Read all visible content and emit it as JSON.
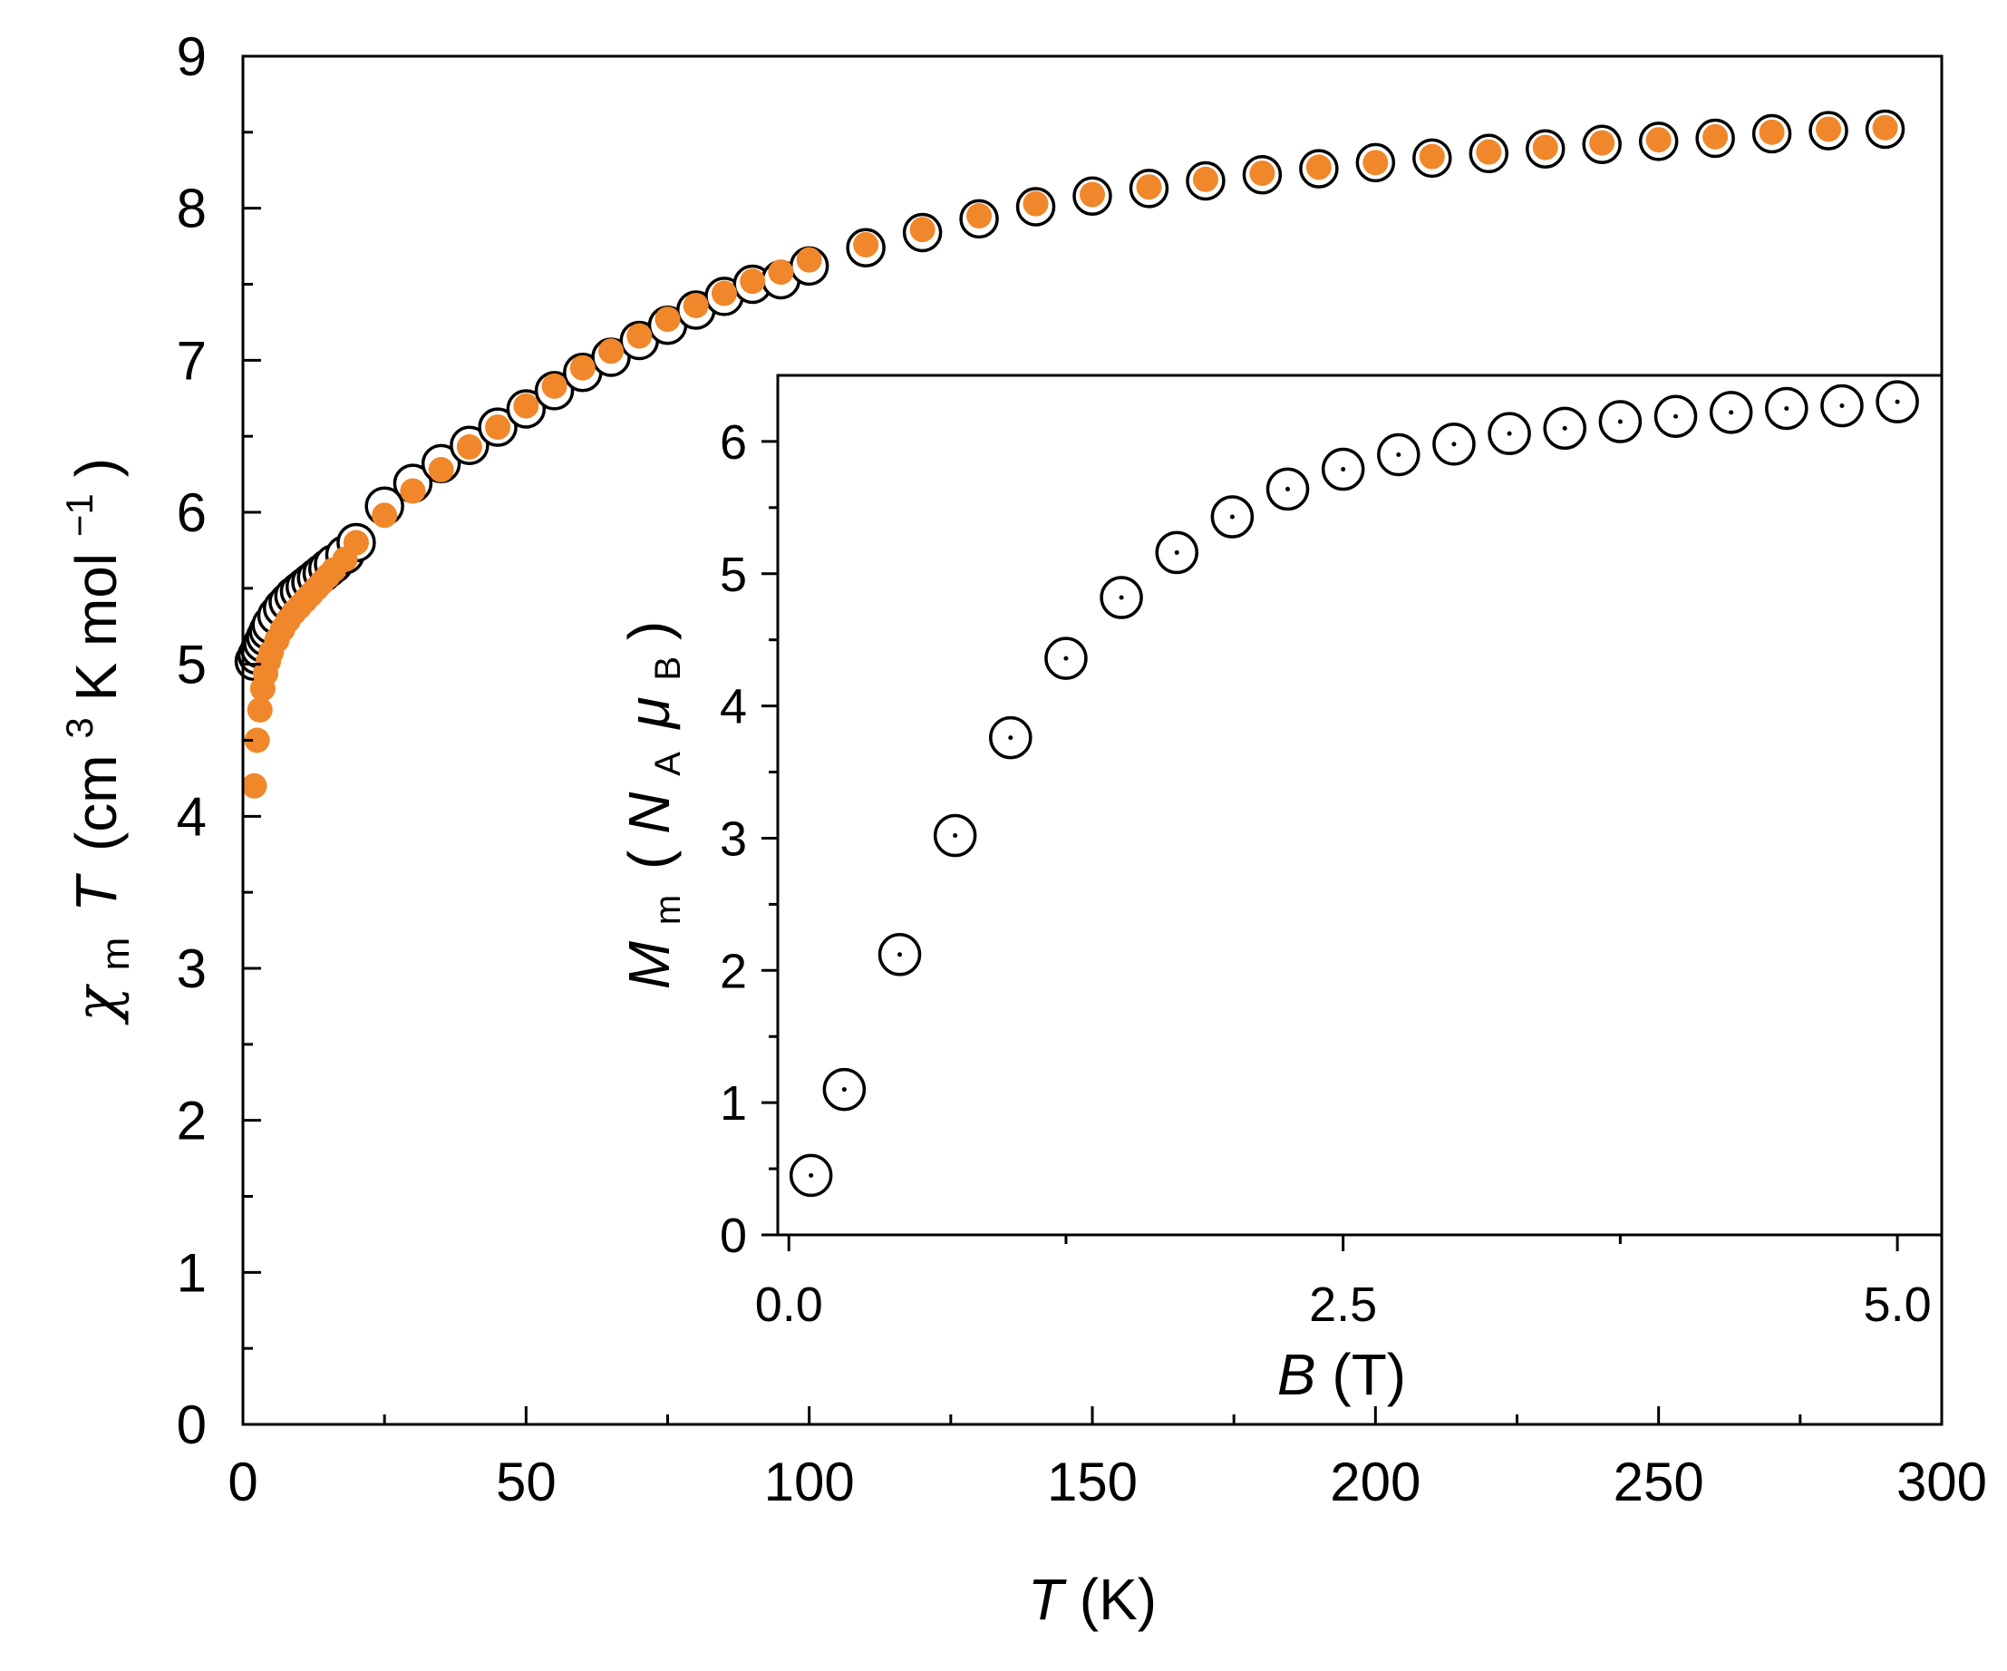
{
  "chart_data": [
    {
      "id": "main",
      "type": "scatter",
      "xlabel": {
        "symbol": "T",
        "unit": "(K)"
      },
      "ylabel": {
        "symbol": "χ",
        "subscript": "m",
        "symbol2": "T",
        "unit_open": "(cm",
        "unit_sup": "3",
        "unit_mid": " K mol",
        "unit_sup2": "−1",
        "unit_close": ")"
      },
      "xlim": [
        0,
        300
      ],
      "ylim": [
        0,
        9
      ],
      "xticks": [
        "0",
        "50",
        "100",
        "150",
        "200",
        "250",
        "300"
      ],
      "xtick_values": [
        0,
        50,
        100,
        150,
        200,
        250,
        300
      ],
      "yticks": [
        "0",
        "1",
        "2",
        "3",
        "4",
        "5",
        "6",
        "7",
        "8",
        "9"
      ],
      "ytick_values": [
        0,
        1,
        2,
        3,
        4,
        5,
        6,
        7,
        8,
        9
      ],
      "series": [
        {
          "name": "open circles",
          "marker": "open-circle",
          "color": "#000000",
          "x": [
            2,
            2.5,
            3,
            3.5,
            4,
            4.5,
            5,
            6,
            7,
            8,
            9,
            10,
            11,
            12,
            13,
            14,
            15,
            16,
            18,
            20,
            25,
            30,
            35,
            40,
            45,
            50,
            55,
            60,
            65,
            70,
            75,
            80,
            85,
            90,
            95,
            100,
            110,
            120,
            130,
            140,
            150,
            160,
            170,
            180,
            190,
            200,
            210,
            220,
            230,
            240,
            250,
            260,
            270,
            280,
            290
          ],
          "y": [
            5.02,
            5.06,
            5.1,
            5.14,
            5.18,
            5.22,
            5.26,
            5.32,
            5.37,
            5.41,
            5.45,
            5.48,
            5.51,
            5.54,
            5.57,
            5.6,
            5.63,
            5.66,
            5.72,
            5.8,
            6.04,
            6.19,
            6.32,
            6.44,
            6.56,
            6.68,
            6.8,
            6.92,
            7.02,
            7.13,
            7.23,
            7.33,
            7.42,
            7.5,
            7.53,
            7.62,
            7.74,
            7.84,
            7.93,
            8.01,
            8.08,
            8.13,
            8.18,
            8.22,
            8.26,
            8.3,
            8.33,
            8.36,
            8.39,
            8.42,
            8.44,
            8.46,
            8.49,
            8.51,
            8.52
          ]
        },
        {
          "name": "filled orange circles",
          "marker": "filled-circle",
          "color": "#F0872A",
          "x": [
            2,
            2.5,
            3,
            3.5,
            4,
            4.5,
            5,
            6,
            7,
            8,
            9,
            10,
            11,
            12,
            13,
            14,
            15,
            16,
            18,
            20,
            25,
            30,
            35,
            40,
            45,
            50,
            55,
            60,
            65,
            70,
            75,
            80,
            85,
            90,
            95,
            100,
            110,
            120,
            130,
            140,
            150,
            160,
            170,
            180,
            190,
            200,
            210,
            220,
            230,
            240,
            250,
            260,
            270,
            280,
            290
          ],
          "y": [
            4.2,
            4.5,
            4.7,
            4.84,
            4.94,
            5.02,
            5.08,
            5.16,
            5.23,
            5.29,
            5.34,
            5.38,
            5.42,
            5.46,
            5.5,
            5.54,
            5.58,
            5.62,
            5.69,
            5.8,
            5.98,
            6.14,
            6.28,
            6.43,
            6.56,
            6.7,
            6.83,
            6.95,
            7.06,
            7.16,
            7.27,
            7.36,
            7.44,
            7.52,
            7.58,
            7.66,
            7.76,
            7.86,
            7.95,
            8.03,
            8.09,
            8.14,
            8.19,
            8.23,
            8.27,
            8.3,
            8.34,
            8.37,
            8.4,
            8.43,
            8.45,
            8.47,
            8.5,
            8.52,
            8.53
          ]
        }
      ]
    },
    {
      "id": "inset",
      "type": "scatter",
      "xlabel": {
        "symbol": "B",
        "unit": "(T)"
      },
      "ylabel": {
        "symbol": "M",
        "subscript": "m",
        "unit_open": "(",
        "sym2": "N",
        "sym2_sub": "A",
        "sym3": "μ",
        "sym3_sub": "B",
        "unit_close": ")"
      },
      "xlim": [
        -0.05,
        5.2
      ],
      "ylim": [
        0,
        6.5
      ],
      "xticks": [
        "0.0",
        "2.5",
        "5.0"
      ],
      "xtick_values": [
        0,
        2.5,
        5
      ],
      "yticks": [
        "0",
        "1",
        "2",
        "3",
        "4",
        "5",
        "6"
      ],
      "ytick_values": [
        0,
        1,
        2,
        3,
        4,
        5,
        6
      ],
      "series": [
        {
          "name": "magnetization",
          "marker": "dotted-open-circle",
          "color": "#000000",
          "x": [
            0.1,
            0.25,
            0.5,
            0.75,
            1.0,
            1.25,
            1.5,
            1.75,
            2.0,
            2.25,
            2.5,
            2.75,
            3.0,
            3.25,
            3.5,
            3.75,
            4.0,
            4.25,
            4.5,
            4.75,
            5.0
          ],
          "y": [
            0.45,
            1.1,
            2.12,
            3.02,
            3.76,
            4.36,
            4.82,
            5.16,
            5.43,
            5.64,
            5.79,
            5.9,
            5.98,
            6.06,
            6.1,
            6.15,
            6.19,
            6.22,
            6.25,
            6.27,
            6.3
          ]
        }
      ]
    }
  ]
}
